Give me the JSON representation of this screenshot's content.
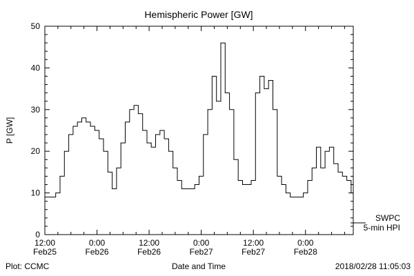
{
  "title": "Hemispheric Power [GW]",
  "axes": {
    "ylabel": "P [GW]",
    "xlabel": "Date and Time",
    "y_ticks": [
      0,
      10,
      20,
      30,
      40,
      50
    ],
    "x_ticks": [
      {
        "hour": 0,
        "time": "12:00",
        "date": "Feb25"
      },
      {
        "hour": 12,
        "time": "0:00",
        "date": "Feb26"
      },
      {
        "hour": 24,
        "time": "12:00",
        "date": "Feb26"
      },
      {
        "hour": 36,
        "time": "0:00",
        "date": "Feb27"
      },
      {
        "hour": 48,
        "time": "12:00",
        "date": "Feb27"
      },
      {
        "hour": 60,
        "time": "0:00",
        "date": "Feb28"
      }
    ]
  },
  "legend": {
    "line1": "SWPC",
    "line2": "5-min HPI"
  },
  "footer": {
    "left": "Plot: CCMC",
    "right": "2018/02/28 11:05:03"
  },
  "chart_data": {
    "type": "line",
    "title": "Hemispheric Power [GW]",
    "xlabel": "Date and Time",
    "ylabel": "P [GW]",
    "ylim": [
      0,
      50
    ],
    "x_unit": "hours since 2018-02-25 12:00",
    "x_tick_hours": [
      0,
      12,
      24,
      36,
      48,
      60
    ],
    "x_tick_labels": [
      "12:00 Feb25",
      "0:00 Feb26",
      "12:00 Feb26",
      "0:00 Feb27",
      "12:00 Feb27",
      "0:00 Feb28"
    ],
    "legend_entries": [
      "SWPC",
      "5-min HPI"
    ],
    "line_color": "#000000",
    "grid": false,
    "series": [
      {
        "name": "SWPC 5-min HPI",
        "x": [
          0,
          1,
          2,
          3,
          4,
          5,
          6,
          7,
          8,
          9,
          10,
          11,
          12,
          13,
          14,
          15,
          16,
          17,
          18,
          19,
          20,
          21,
          22,
          23,
          24,
          25,
          26,
          27,
          28,
          29,
          30,
          31,
          32,
          33,
          34,
          35,
          36,
          37,
          38,
          39,
          40,
          41,
          42,
          43,
          44,
          45,
          46,
          47,
          48,
          49,
          50,
          51,
          52,
          53,
          54,
          55,
          56,
          57,
          58,
          59,
          60,
          61,
          62,
          63,
          64,
          65,
          66,
          67,
          68,
          69,
          70,
          71
        ],
        "values": [
          9,
          9,
          9,
          10,
          14,
          20,
          24,
          26,
          27,
          28,
          27,
          26,
          25,
          23,
          20,
          15,
          11,
          16,
          22,
          27,
          30,
          31,
          29,
          25,
          22,
          21,
          24,
          25,
          23,
          20,
          16,
          13,
          11,
          11,
          11,
          12,
          14,
          24,
          30,
          38,
          32,
          46,
          34,
          30,
          18,
          13,
          12,
          12,
          13,
          34,
          38,
          35,
          37,
          30,
          14,
          12,
          10,
          9,
          9,
          9,
          10,
          13,
          16,
          21,
          16,
          20,
          21,
          17,
          15,
          14,
          13,
          10
        ]
      }
    ]
  }
}
